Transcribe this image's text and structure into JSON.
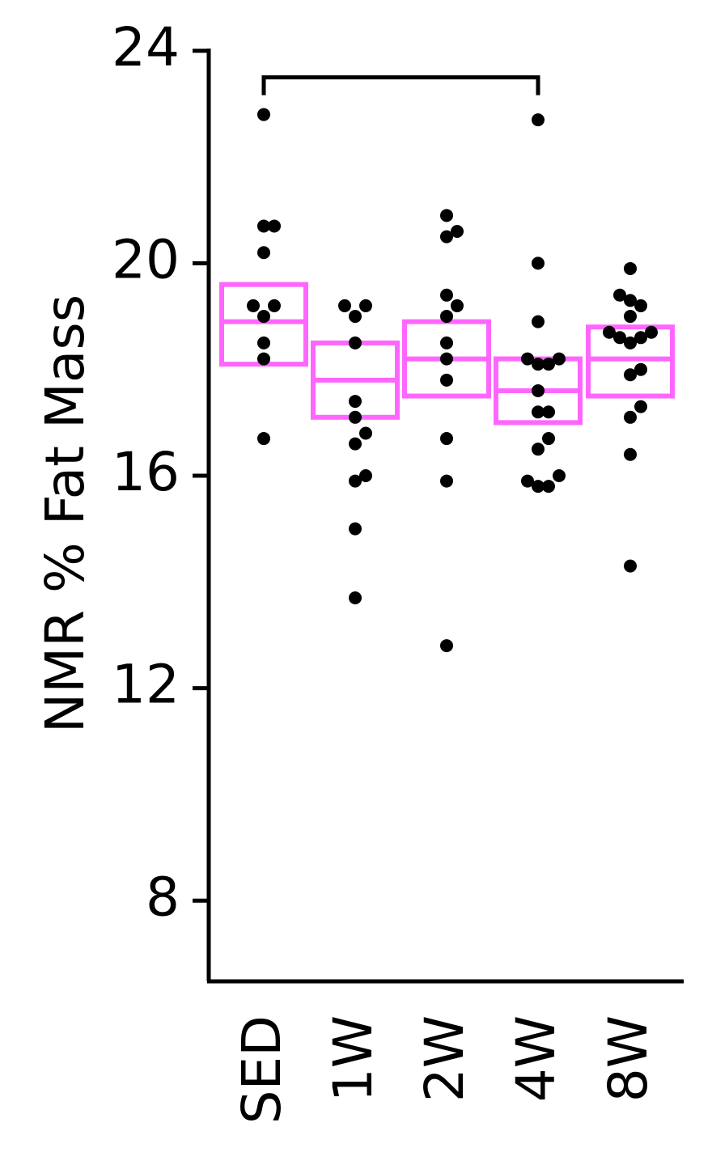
{
  "chart_data": {
    "type": "scatter",
    "title": "",
    "xlabel": "",
    "ylabel": "NMR % Fat Mass",
    "categories": [
      "SED",
      "1W",
      "2W",
      "4W",
      "8W"
    ],
    "yticks": [
      8,
      12,
      16,
      20,
      24
    ],
    "ylim": [
      6.5,
      24.2
    ],
    "grid": false,
    "legend": "none",
    "colors": {
      "box": "#ff66ff",
      "point": "#000000",
      "axis": "#000000"
    },
    "groups": [
      {
        "category": "SED",
        "box": {
          "low": 18.1,
          "mid": 18.9,
          "high": 19.6
        },
        "points": [
          {
            "offset": 0,
            "y": 22.8
          },
          {
            "offset": 0,
            "y": 20.7
          },
          {
            "offset": 1,
            "y": 20.7
          },
          {
            "offset": 0,
            "y": 20.2
          },
          {
            "offset": -1,
            "y": 19.2
          },
          {
            "offset": 1,
            "y": 19.2
          },
          {
            "offset": 0,
            "y": 19.0
          },
          {
            "offset": 0,
            "y": 18.5
          },
          {
            "offset": 0,
            "y": 18.2
          },
          {
            "offset": 0,
            "y": 16.7
          }
        ]
      },
      {
        "category": "1W",
        "box": {
          "low": 17.1,
          "mid": 17.8,
          "high": 18.5
        },
        "points": [
          {
            "offset": -1,
            "y": 19.2
          },
          {
            "offset": 1,
            "y": 19.2
          },
          {
            "offset": 0,
            "y": 19.0
          },
          {
            "offset": 0,
            "y": 18.5
          },
          {
            "offset": 0,
            "y": 17.4
          },
          {
            "offset": 0,
            "y": 17.1
          },
          {
            "offset": 1,
            "y": 16.8
          },
          {
            "offset": 0,
            "y": 16.6
          },
          {
            "offset": 1,
            "y": 16.0
          },
          {
            "offset": 0,
            "y": 15.9
          },
          {
            "offset": 0,
            "y": 15.0
          },
          {
            "offset": 0,
            "y": 13.7
          }
        ]
      },
      {
        "category": "2W",
        "box": {
          "low": 17.5,
          "mid": 18.2,
          "high": 18.9
        },
        "points": [
          {
            "offset": 0,
            "y": 20.9
          },
          {
            "offset": 1,
            "y": 20.6
          },
          {
            "offset": 0,
            "y": 20.5
          },
          {
            "offset": 0,
            "y": 19.4
          },
          {
            "offset": 1,
            "y": 19.2
          },
          {
            "offset": 0,
            "y": 19.0
          },
          {
            "offset": 0,
            "y": 18.5
          },
          {
            "offset": 0,
            "y": 18.2
          },
          {
            "offset": 0,
            "y": 17.8
          },
          {
            "offset": 0,
            "y": 16.7
          },
          {
            "offset": 0,
            "y": 15.9
          },
          {
            "offset": 0,
            "y": 12.8
          }
        ]
      },
      {
        "category": "4W",
        "box": {
          "low": 17.0,
          "mid": 17.6,
          "high": 18.2
        },
        "points": [
          {
            "offset": 0,
            "y": 22.7
          },
          {
            "offset": 0,
            "y": 20.0
          },
          {
            "offset": 0,
            "y": 18.9
          },
          {
            "offset": -1,
            "y": 18.2
          },
          {
            "offset": 2,
            "y": 18.2
          },
          {
            "offset": 0,
            "y": 18.1
          },
          {
            "offset": 1,
            "y": 18.1
          },
          {
            "offset": 0,
            "y": 17.6
          },
          {
            "offset": 0,
            "y": 17.2
          },
          {
            "offset": 1,
            "y": 17.2
          },
          {
            "offset": 1,
            "y": 16.7
          },
          {
            "offset": 0,
            "y": 16.5
          },
          {
            "offset": -1,
            "y": 15.9
          },
          {
            "offset": 2,
            "y": 16.0
          },
          {
            "offset": 0,
            "y": 15.8
          },
          {
            "offset": 1,
            "y": 15.8
          }
        ]
      },
      {
        "category": "8W",
        "box": {
          "low": 17.5,
          "mid": 18.2,
          "high": 18.8
        },
        "points": [
          {
            "offset": 0,
            "y": 19.9
          },
          {
            "offset": -1,
            "y": 19.4
          },
          {
            "offset": 0,
            "y": 19.3
          },
          {
            "offset": 1,
            "y": 19.2
          },
          {
            "offset": 0,
            "y": 19.0
          },
          {
            "offset": -2,
            "y": 18.7
          },
          {
            "offset": 2,
            "y": 18.7
          },
          {
            "offset": -1,
            "y": 18.6
          },
          {
            "offset": 1,
            "y": 18.6
          },
          {
            "offset": 0,
            "y": 18.5
          },
          {
            "offset": 1,
            "y": 18.0
          },
          {
            "offset": 0,
            "y": 17.9
          },
          {
            "offset": 1,
            "y": 17.3
          },
          {
            "offset": 0,
            "y": 17.1
          },
          {
            "offset": 0,
            "y": 16.4
          },
          {
            "offset": 0,
            "y": 14.3
          }
        ]
      }
    ],
    "bracket": {
      "from": "SED",
      "to": "4W",
      "y": 23.5,
      "label": ""
    }
  }
}
